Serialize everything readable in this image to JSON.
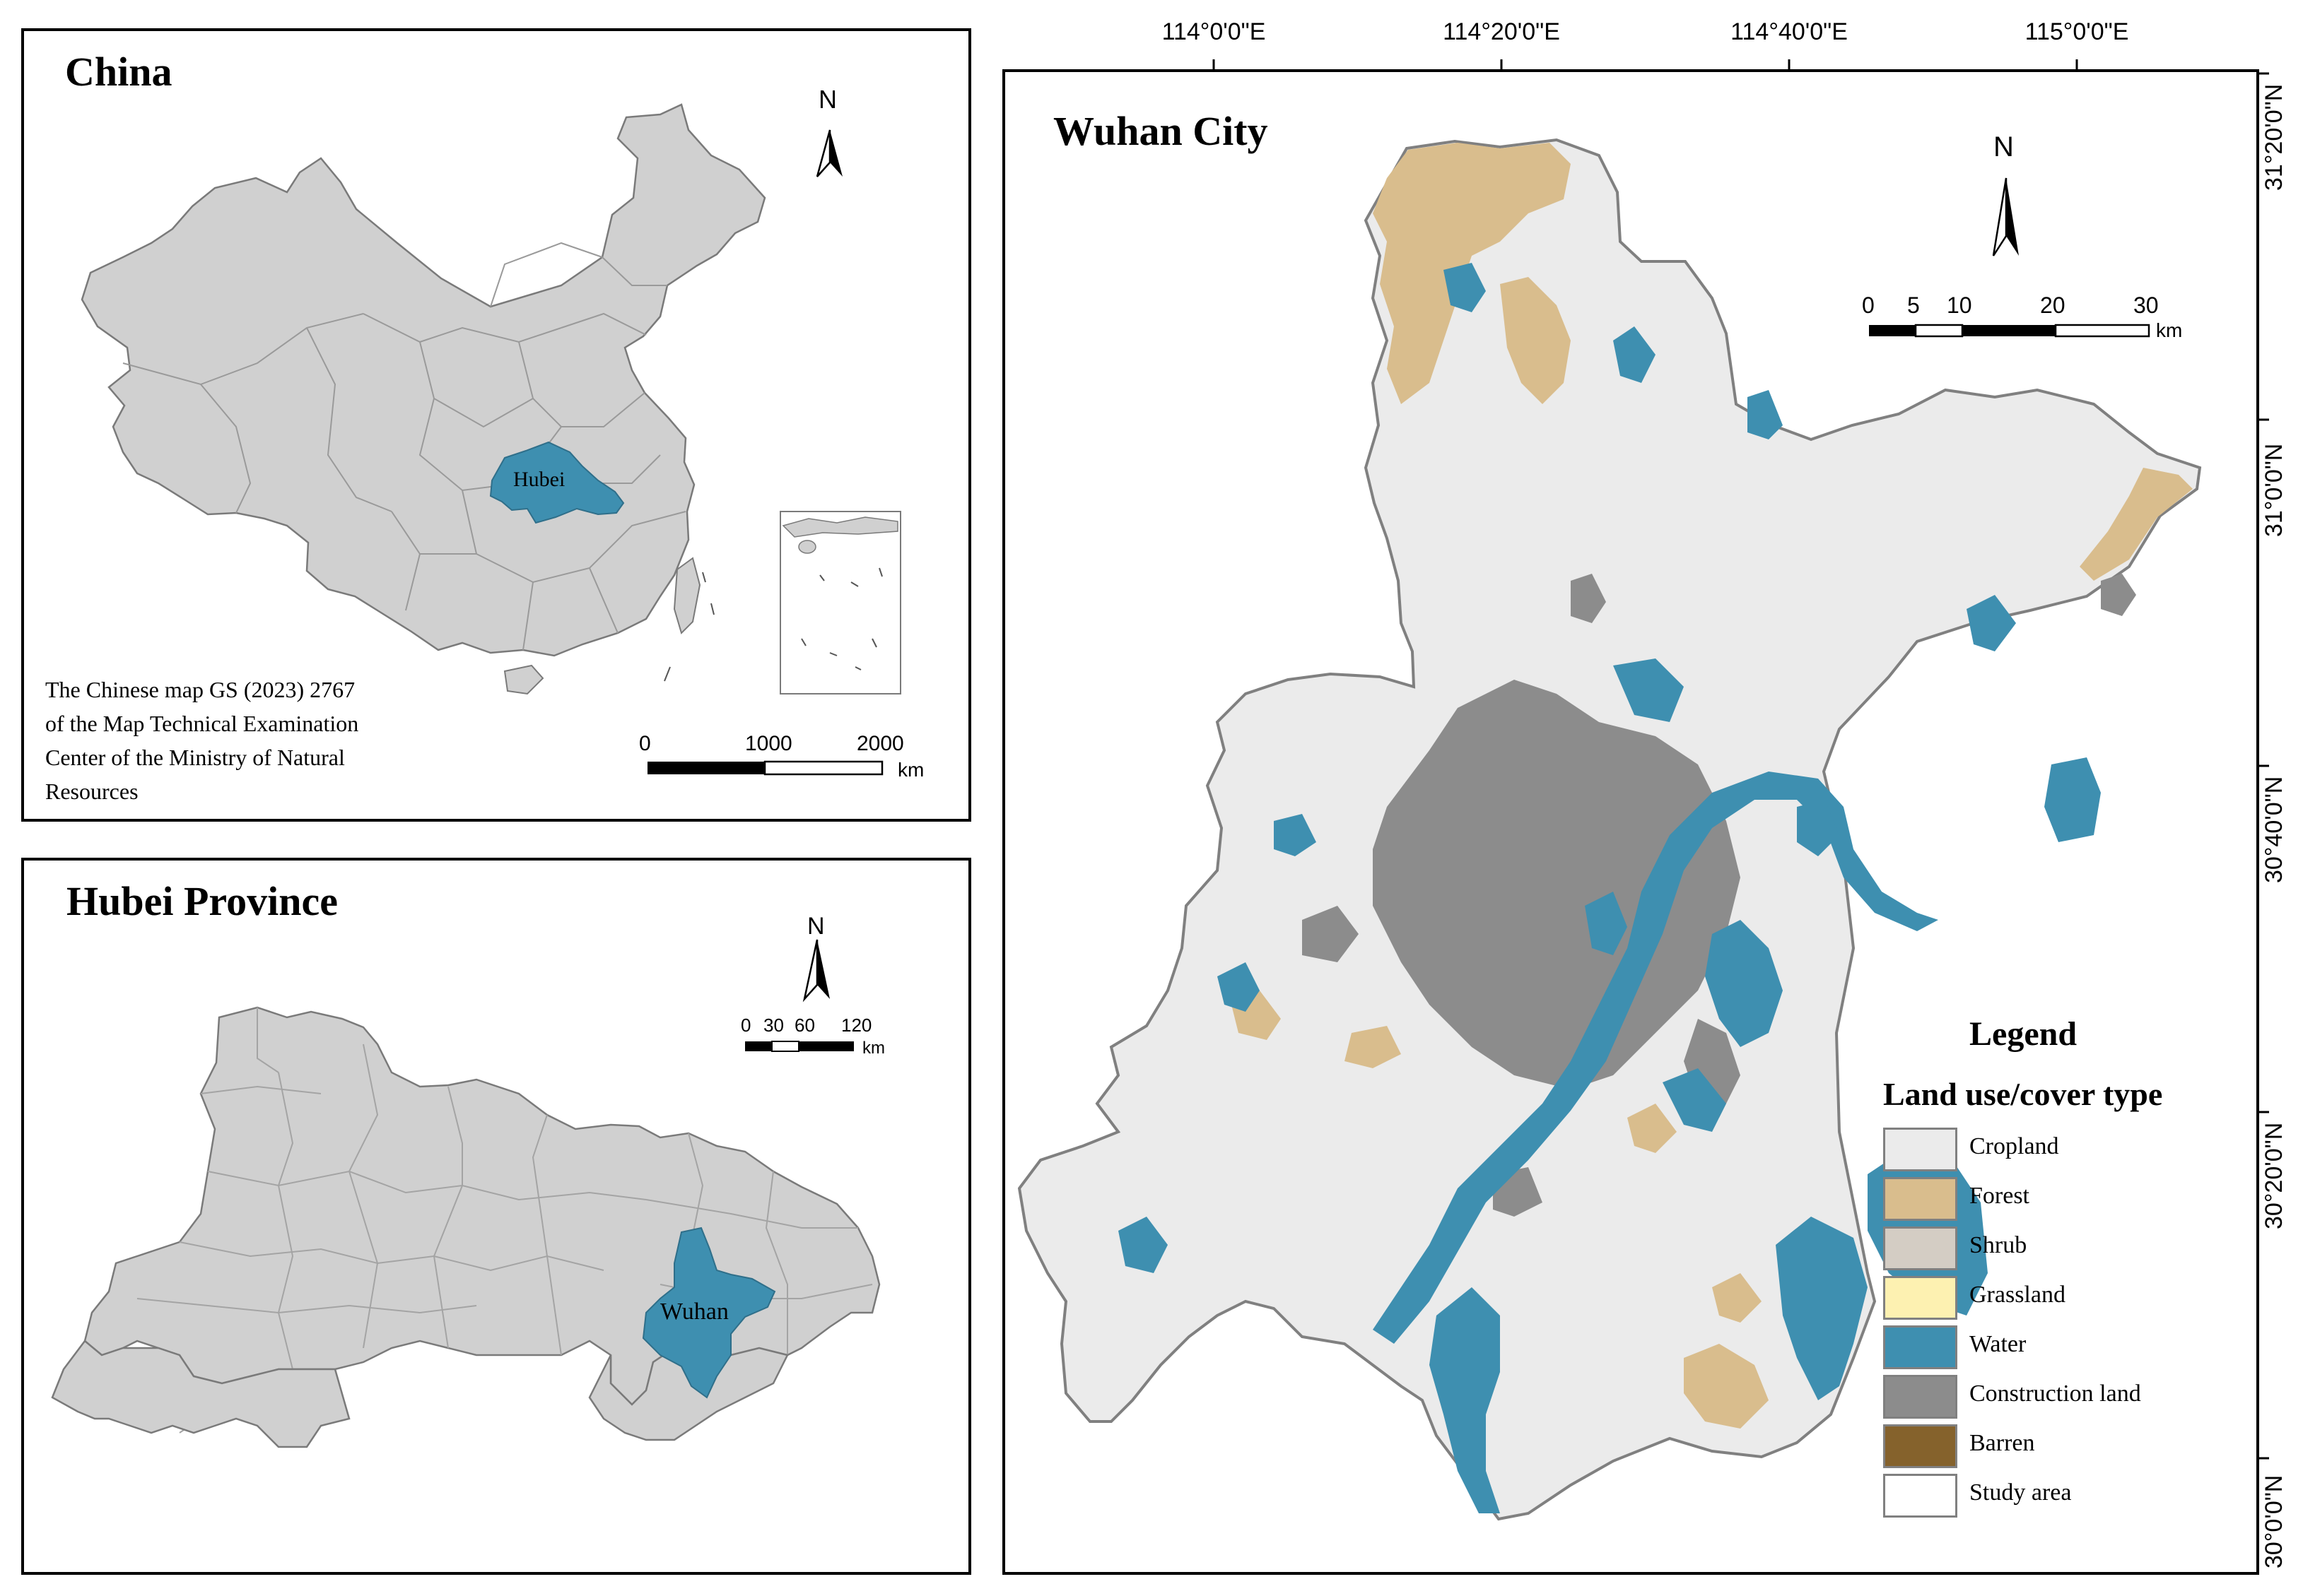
{
  "china": {
    "title": "China",
    "highlight_label": "Hubei",
    "note_lines": [
      "The Chinese map GS (2023) 2767",
      "of the Map Technical Examination",
      "Center of the Ministry of Natural",
      "Resources"
    ],
    "north": "N",
    "scale": {
      "ticks": [
        "0",
        "1000",
        "2000"
      ],
      "unit": "km"
    }
  },
  "hubei": {
    "title": "Hubei Province",
    "highlight_label": "Wuhan",
    "north": "N",
    "scale": {
      "ticks": [
        "0",
        "30",
        "60",
        "120"
      ],
      "unit": "km"
    }
  },
  "wuhan": {
    "title": "Wuhan City",
    "north": "N",
    "scale": {
      "ticks": [
        "0",
        "5",
        "10",
        "20",
        "30"
      ],
      "unit": "km"
    },
    "lon_labels": [
      "114°0'0\"E",
      "114°20'0\"E",
      "114°40'0\"E",
      "115°0'0\"E"
    ],
    "lat_labels": [
      "31°20'0\"N",
      "31°0'0\"N",
      "30°40'0\"N",
      "30°20'0\"N",
      "30°0'0\"N"
    ],
    "legend": {
      "title": "Legend",
      "subtitle": "Land use/cover type",
      "items": [
        {
          "label": "Cropland",
          "color": "#ebebeb"
        },
        {
          "label": "Forest",
          "color": "#d9bd8d"
        },
        {
          "label": "Shrub",
          "color": "#d4cdc4"
        },
        {
          "label": "Grassland",
          "color": "#fdf1b1"
        },
        {
          "label": "Water",
          "color": "#3e8fb0"
        },
        {
          "label": "Construction land",
          "color": "#8c8c8c"
        },
        {
          "label": "Barren",
          "color": "#85622c"
        },
        {
          "label": "Study area",
          "color": "#ffffff"
        }
      ]
    }
  },
  "colors": {
    "land": "#d0d0d0",
    "highlight": "#3e8fb0",
    "border": "#808080"
  }
}
